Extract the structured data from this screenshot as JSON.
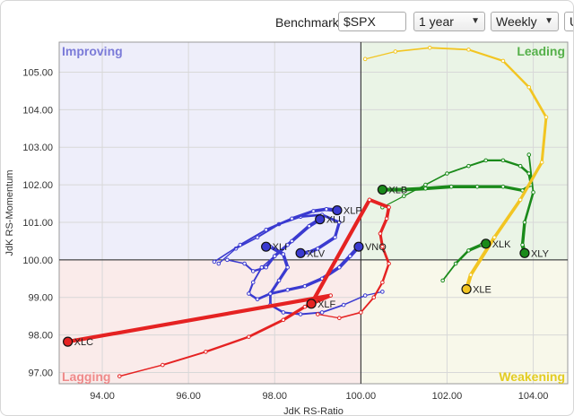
{
  "controls": {
    "benchmark_label": "Benchmark:",
    "benchmark_value": "$SPX",
    "period": "1 year",
    "frequency": "Weekly",
    "more_label": "U"
  },
  "chart_data": {
    "type": "scatter",
    "title": "",
    "xlabel": "JdK RS-Ratio",
    "ylabel": "JdK RS-Momentum",
    "xlim": [
      93.0,
      104.8
    ],
    "ylim": [
      96.7,
      105.8
    ],
    "xticks": [
      94,
      96,
      98,
      100,
      102,
      104
    ],
    "xtick_labels": [
      "94.00",
      "96.00",
      "98.00",
      "100.00",
      "102.00",
      "104.00"
    ],
    "yticks": [
      97,
      98,
      99,
      100,
      101,
      102,
      103,
      104,
      105
    ],
    "ytick_labels": [
      "97.00",
      "98.00",
      "99.00",
      "100.00",
      "101.00",
      "102.00",
      "103.00",
      "104.00",
      "105.00"
    ],
    "grid": true,
    "quadrants": [
      {
        "name": "Improving",
        "position": "top-left",
        "color": "#eeeefa",
        "label_color": "#7b7bd8"
      },
      {
        "name": "Leading",
        "position": "top-right",
        "color": "#eaf4e6",
        "label_color": "#55b04a"
      },
      {
        "name": "Lagging",
        "position": "bottom-left",
        "color": "#faebea",
        "label_color": "#ef8a8a"
      },
      {
        "name": "Weakening",
        "position": "bottom-right",
        "color": "#f8f8ea",
        "label_color": "#e3cc22"
      }
    ],
    "series": [
      {
        "name": "XLB",
        "color": "#1a8a1a",
        "head": [
          100.5,
          101.87
        ],
        "tail": [
          [
            100.5,
            101.4
          ],
          [
            101.0,
            101.7
          ],
          [
            101.5,
            102.0
          ],
          [
            102.0,
            102.3
          ],
          [
            102.5,
            102.5
          ],
          [
            102.9,
            102.65
          ],
          [
            103.3,
            102.65
          ],
          [
            103.7,
            102.5
          ],
          [
            103.9,
            102.3
          ],
          [
            103.95,
            102.0
          ],
          [
            103.75,
            101.85
          ],
          [
            103.3,
            101.95
          ],
          [
            102.7,
            101.95
          ],
          [
            102.1,
            101.95
          ],
          [
            101.5,
            101.9
          ],
          [
            101.0,
            101.87
          ]
        ]
      },
      {
        "name": "XLV",
        "color": "#3a3ad0",
        "head": [
          98.6,
          100.18
        ],
        "tail": [
          [
            96.7,
            99.9
          ],
          [
            97.1,
            100.3
          ],
          [
            97.6,
            100.6
          ],
          [
            98.1,
            100.95
          ],
          [
            98.6,
            101.15
          ],
          [
            99.1,
            101.2
          ],
          [
            99.5,
            101.0
          ],
          [
            99.4,
            100.6
          ],
          [
            99.0,
            100.3
          ],
          [
            98.8,
            100.2
          ]
        ]
      },
      {
        "name": "XLP",
        "color": "#3a3ad0",
        "head": [
          99.45,
          101.32
        ],
        "tail": [
          [
            96.6,
            99.95
          ],
          [
            97.2,
            100.4
          ],
          [
            97.8,
            100.8
          ],
          [
            98.4,
            101.1
          ],
          [
            98.9,
            101.3
          ],
          [
            99.2,
            101.35
          ]
        ]
      },
      {
        "name": "XLU",
        "color": "#3a3ad0",
        "head": [
          99.05,
          101.08
        ],
        "tail": [
          [
            96.9,
            100.0
          ],
          [
            97.3,
            99.9
          ],
          [
            97.5,
            99.7
          ],
          [
            97.8,
            99.8
          ],
          [
            98.0,
            100.1
          ],
          [
            98.4,
            100.5
          ],
          [
            98.8,
            100.9
          ]
        ]
      },
      {
        "name": "XLI",
        "color": "#3a3ad0",
        "head": [
          97.8,
          100.35
        ],
        "tail": [
          [
            98.3,
            100.4
          ],
          [
            98.0,
            100.1
          ],
          [
            97.7,
            99.8
          ],
          [
            97.5,
            99.4
          ],
          [
            97.4,
            99.1
          ],
          [
            97.6,
            98.95
          ],
          [
            97.9,
            99.1
          ],
          [
            98.1,
            99.45
          ],
          [
            98.3,
            99.8
          ],
          [
            98.2,
            100.15
          ],
          [
            97.9,
            100.35
          ]
        ]
      },
      {
        "name": "VNQ",
        "color": "#3a3ad0",
        "head": [
          99.95,
          100.35
        ],
        "tail": [
          [
            100.5,
            99.15
          ],
          [
            100.1,
            99.05
          ],
          [
            99.6,
            98.8
          ],
          [
            99.1,
            98.6
          ],
          [
            98.6,
            98.55
          ],
          [
            98.2,
            98.6
          ],
          [
            97.9,
            98.8
          ],
          [
            97.9,
            99.1
          ],
          [
            98.3,
            99.2
          ],
          [
            98.7,
            99.3
          ],
          [
            99.1,
            99.5
          ],
          [
            99.5,
            99.8
          ],
          [
            99.75,
            100.1
          ]
        ]
      },
      {
        "name": "XLF",
        "color": "#e52222",
        "head": [
          98.85,
          98.83
        ],
        "tail": [
          [
            99.0,
            98.55
          ],
          [
            99.5,
            98.45
          ],
          [
            100.0,
            98.6
          ],
          [
            100.3,
            99.0
          ],
          [
            100.5,
            99.4
          ],
          [
            100.65,
            99.9
          ],
          [
            100.5,
            100.35
          ],
          [
            100.45,
            100.7
          ],
          [
            100.6,
            101.1
          ],
          [
            100.65,
            101.4
          ],
          [
            100.2,
            101.6
          ]
        ]
      },
      {
        "name": "XLC",
        "color": "#e52222",
        "head": [
          93.2,
          97.82
        ],
        "tail": [
          [
            94.4,
            96.9
          ],
          [
            95.4,
            97.2
          ],
          [
            96.4,
            97.55
          ],
          [
            97.4,
            97.95
          ],
          [
            98.2,
            98.4
          ],
          [
            98.7,
            98.75
          ],
          [
            99.3,
            99.05
          ]
        ]
      },
      {
        "name": "XLK",
        "color": "#1a8a1a",
        "head": [
          102.9,
          100.43
        ],
        "tail": [
          [
            101.9,
            99.45
          ],
          [
            102.2,
            99.9
          ],
          [
            102.5,
            100.25
          ],
          [
            102.8,
            100.4
          ]
        ]
      },
      {
        "name": "XLY",
        "color": "#1a8a1a",
        "head": [
          103.8,
          100.18
        ],
        "tail": [
          [
            103.9,
            102.8
          ],
          [
            104.0,
            101.8
          ],
          [
            103.8,
            101.0
          ],
          [
            103.75,
            100.4
          ]
        ]
      },
      {
        "name": "XLE",
        "color": "#f2c522",
        "head": [
          102.45,
          99.22
        ],
        "tail": [
          [
            100.1,
            105.35
          ],
          [
            100.8,
            105.55
          ],
          [
            101.6,
            105.65
          ],
          [
            102.5,
            105.6
          ],
          [
            103.3,
            105.3
          ],
          [
            103.9,
            104.6
          ],
          [
            104.3,
            103.8
          ],
          [
            104.2,
            102.6
          ],
          [
            103.7,
            101.6
          ],
          [
            103.1,
            100.6
          ],
          [
            102.55,
            99.6
          ]
        ]
      }
    ]
  }
}
